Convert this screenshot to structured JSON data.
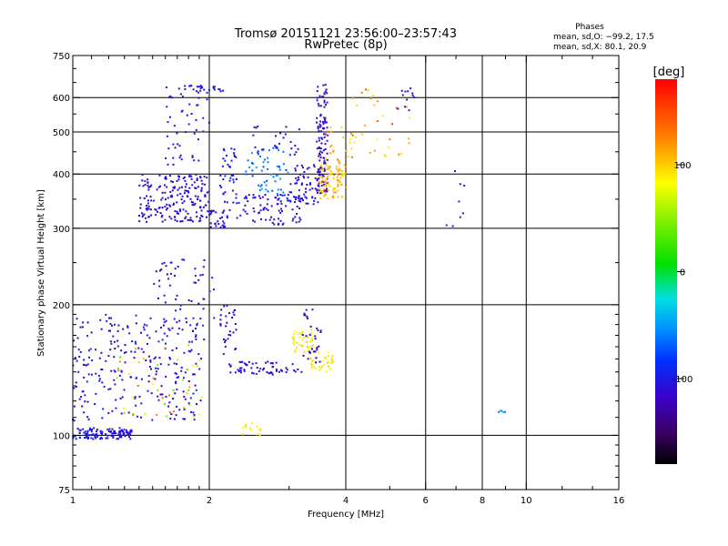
{
  "header": {
    "title": "Tromsø 20151121 23:56:00–23:57:43",
    "subtitle": "RwPretec (8p)"
  },
  "stats": {
    "heading": "Phases",
    "line_o": "mean, sd,O: −99.2, 17.5",
    "line_x": "mean, sd,X:  80.1, 20.9"
  },
  "colorbar": {
    "unit_label": "[deg]",
    "range": [
      -180,
      180
    ],
    "ticks": [
      "100",
      "0",
      "-100"
    ],
    "tick_values": [
      100,
      0,
      -100
    ]
  },
  "chart_data": {
    "type": "scatter",
    "xlabel": "Frequency [MHz]",
    "ylabel": "Stationary phase Virtual Height [km]",
    "x_scale": "log",
    "y_scale": "log",
    "xlim": [
      1,
      16
    ],
    "ylim": [
      75,
      750
    ],
    "x_ticks": [
      1,
      2,
      4,
      6,
      8,
      10,
      16
    ],
    "x_tick_labels": [
      "1",
      "2",
      "4",
      "6",
      "8",
      "10",
      "16"
    ],
    "y_ticks": [
      75,
      100,
      200,
      300,
      400,
      500,
      600,
      750
    ],
    "y_tick_labels": [
      "75",
      "100",
      "200",
      "300",
      "400",
      "500",
      "600",
      "750"
    ],
    "grid": true,
    "color_variable": "phase [deg]",
    "clusters": [
      {
        "x": [
          1.0,
          1.35
        ],
        "y": [
          98,
          104
        ],
        "phase": [
          -115,
          -95
        ],
        "n": 120
      },
      {
        "x": [
          1.0,
          1.95
        ],
        "y": [
          108,
          190
        ],
        "phase": [
          -125,
          -90
        ],
        "n": 260
      },
      {
        "x": [
          1.25,
          1.95
        ],
        "y": [
          110,
          165
        ],
        "phase": [
          30,
          140
        ],
        "n": 45
      },
      {
        "x": [
          1.5,
          2.05
        ],
        "y": [
          175,
          255
        ],
        "phase": [
          -130,
          -95
        ],
        "n": 55
      },
      {
        "x": [
          1.4,
          2.0
        ],
        "y": [
          310,
          400
        ],
        "phase": [
          -130,
          -95
        ],
        "n": 200
      },
      {
        "x": [
          1.6,
          2.0
        ],
        "y": [
          420,
          640
        ],
        "phase": [
          -120,
          -95
        ],
        "n": 55
      },
      {
        "x": [
          1.75,
          2.15
        ],
        "y": [
          620,
          640
        ],
        "phase": [
          -115,
          -95
        ],
        "n": 18
      },
      {
        "x": [
          2.0,
          2.2
        ],
        "y": [
          300,
          330
        ],
        "phase": [
          -120,
          -100
        ],
        "n": 30
      },
      {
        "x": [
          2.1,
          2.3
        ],
        "y": [
          330,
          460
        ],
        "phase": [
          -110,
          -95
        ],
        "n": 40
      },
      {
        "x": [
          2.1,
          2.3
        ],
        "y": [
          150,
          200
        ],
        "phase": [
          -130,
          -100
        ],
        "n": 30
      },
      {
        "x": [
          2.3,
          3.2
        ],
        "y": [
          305,
          360
        ],
        "phase": [
          -120,
          -95
        ],
        "n": 90
      },
      {
        "x": [
          2.4,
          3.0
        ],
        "y": [
          360,
          460
        ],
        "phase": [
          -80,
          -40
        ],
        "n": 55
      },
      {
        "x": [
          2.5,
          3.2
        ],
        "y": [
          440,
          520
        ],
        "phase": [
          -115,
          -95
        ],
        "n": 25
      },
      {
        "x": [
          2.2,
          3.2
        ],
        "y": [
          138,
          148
        ],
        "phase": [
          -125,
          -100
        ],
        "n": 60
      },
      {
        "x": [
          3.05,
          3.4
        ],
        "y": [
          155,
          175
        ],
        "phase": [
          60,
          100
        ],
        "n": 40
      },
      {
        "x": [
          3.3,
          3.75
        ],
        "y": [
          140,
          155
        ],
        "phase": [
          70,
          100
        ],
        "n": 35
      },
      {
        "x": [
          3.2,
          3.55
        ],
        "y": [
          145,
          195
        ],
        "phase": [
          -140,
          -110
        ],
        "n": 30
      },
      {
        "x": [
          3.0,
          3.5
        ],
        "y": [
          340,
          420
        ],
        "phase": [
          -125,
          -100
        ],
        "n": 60
      },
      {
        "x": [
          3.45,
          3.65
        ],
        "y": [
          360,
          645
        ],
        "phase": [
          -130,
          -100
        ],
        "n": 120
      },
      {
        "x": [
          3.5,
          4.0
        ],
        "y": [
          350,
          420
        ],
        "phase": [
          90,
          120
        ],
        "n": 80
      },
      {
        "x": [
          3.6,
          4.2
        ],
        "y": [
          420,
          520
        ],
        "phase": [
          80,
          140
        ],
        "n": 25
      },
      {
        "x": [
          4.1,
          5.6
        ],
        "y": [
          430,
          630
        ],
        "phase": [
          60,
          150
        ],
        "n": 30
      },
      {
        "x": [
          5.2,
          5.7
        ],
        "y": [
          560,
          640
        ],
        "phase": [
          -115,
          -95
        ],
        "n": 12
      },
      {
        "x": [
          2.35,
          2.6
        ],
        "y": [
          100,
          108
        ],
        "phase": [
          70,
          95
        ],
        "n": 14
      },
      {
        "x": [
          8.6,
          9.0
        ],
        "y": [
          113,
          114
        ],
        "phase": [
          -60,
          -45
        ],
        "n": 6
      },
      {
        "x": [
          6.2,
          7.6
        ],
        "y": [
          300,
          420
        ],
        "phase": [
          -110,
          -90
        ],
        "n": 8
      }
    ]
  }
}
